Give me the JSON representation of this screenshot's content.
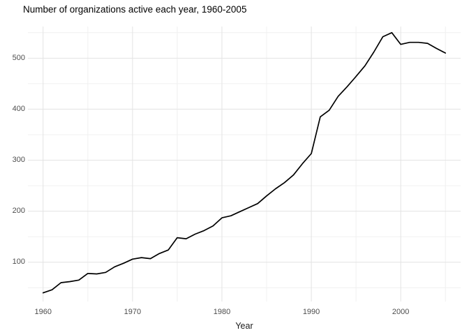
{
  "page": {
    "title": "Number of organizations active each year, 1960-2005"
  },
  "chart_data": {
    "type": "line",
    "title": "Number of organizations active each year, 1960-2005",
    "xlabel": "Year",
    "ylabel": "",
    "x": [
      1960,
      1961,
      1962,
      1963,
      1964,
      1965,
      1966,
      1967,
      1968,
      1969,
      1970,
      1971,
      1972,
      1973,
      1974,
      1975,
      1976,
      1977,
      1978,
      1979,
      1980,
      1981,
      1982,
      1983,
      1984,
      1985,
      1986,
      1987,
      1988,
      1989,
      1990,
      1991,
      1992,
      1993,
      1994,
      1995,
      1996,
      1997,
      1998,
      1999,
      2000,
      2001,
      2002,
      2003,
      2004,
      2005
    ],
    "values": [
      40,
      46,
      60,
      62,
      65,
      78,
      77,
      80,
      91,
      98,
      106,
      109,
      107,
      117,
      124,
      148,
      146,
      155,
      162,
      171,
      187,
      191,
      199,
      207,
      215,
      230,
      244,
      256,
      271,
      293,
      313,
      385,
      398,
      425,
      444,
      464,
      485,
      512,
      542,
      550,
      527,
      531,
      531,
      529,
      519,
      510
    ],
    "x_ticks": {
      "major": [
        1960,
        1970,
        1980,
        1990,
        2000
      ],
      "minor": [
        1965,
        1975,
        1985,
        1995,
        2005
      ]
    },
    "y_ticks": {
      "major": [
        100,
        200,
        300,
        400,
        500
      ],
      "minor": [
        50,
        150,
        250,
        350,
        450,
        550
      ]
    },
    "xlim": [
      1958.3,
      2006.7
    ],
    "ylim": [
      23,
      562
    ],
    "grid": "on",
    "legend": "none",
    "colors": {
      "line": "#000000",
      "grid_major": "#e3e3e3",
      "grid_minor": "#f0f0f0",
      "tick_label": "#4d4d4d",
      "axis_title": "#1a1a1a",
      "title": "#000000",
      "background": "#ffffff"
    }
  }
}
